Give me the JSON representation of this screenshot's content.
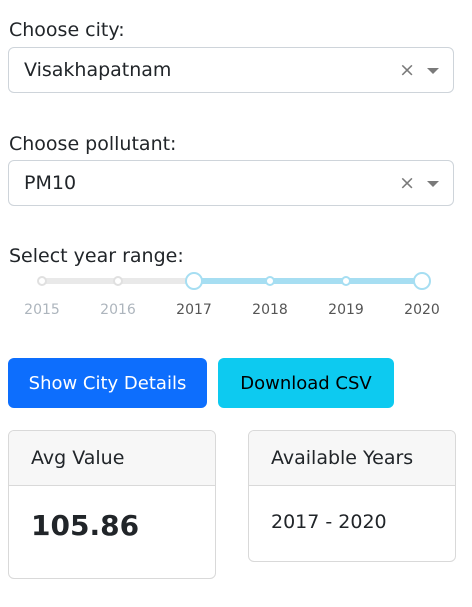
{
  "city": {
    "label": "Choose city:",
    "value": "Visakhapatnam",
    "clear": "×"
  },
  "pollutant": {
    "label": "Choose pollutant:",
    "value": "PM10",
    "clear": "×"
  },
  "year_range": {
    "label": "Select year range:",
    "ticks": [
      "2015",
      "2016",
      "2017",
      "2018",
      "2019",
      "2020"
    ],
    "selected_start": "2017",
    "selected_end": "2020",
    "colors": {
      "track": "#e9e9e9",
      "active": "#a6def2"
    }
  },
  "buttons": {
    "show_details": "Show City Details",
    "download_csv": "Download CSV"
  },
  "cards": {
    "avg": {
      "title": "Avg Value",
      "value": "105.86"
    },
    "years": {
      "title": "Available Years",
      "value": "2017 - 2020"
    }
  },
  "colors": {
    "primary": "#0d6efd",
    "info": "#0dcaf0"
  }
}
